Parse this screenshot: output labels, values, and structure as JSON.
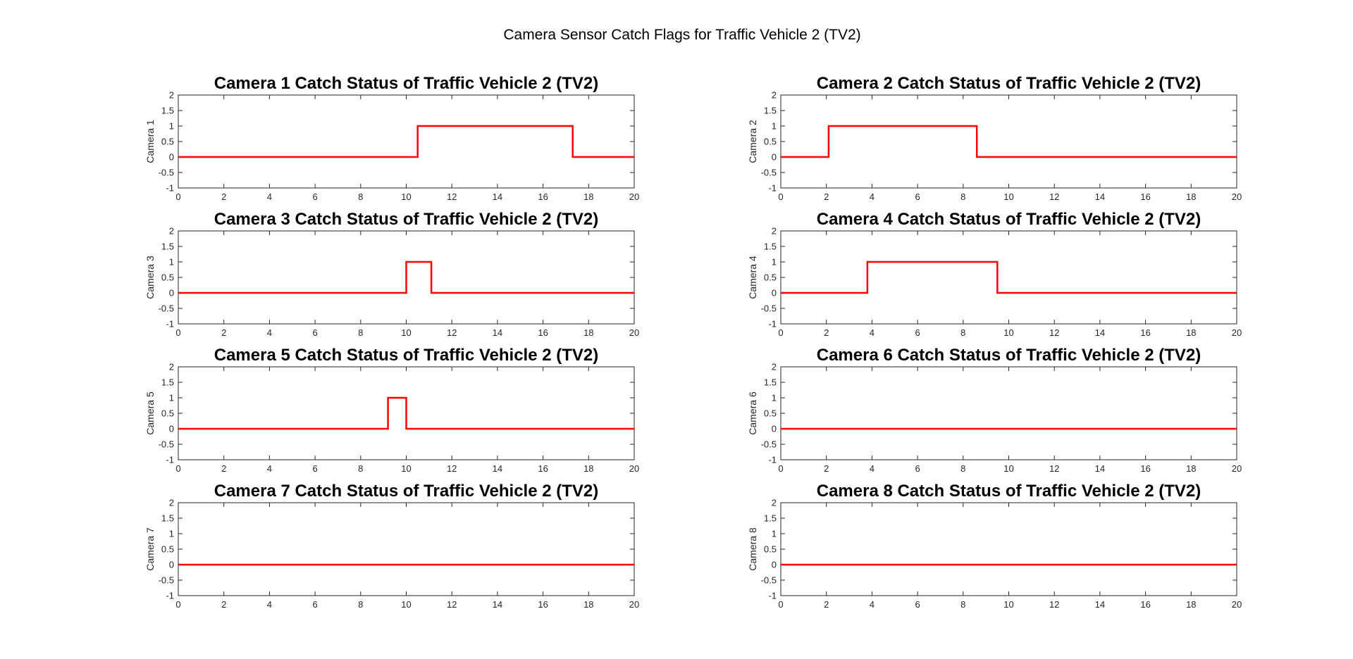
{
  "figure": {
    "title": "Camera Sensor Catch Flags for Traffic Vehicle 2 (TV2)",
    "line_color": "#ff0000"
  },
  "chart_data": [
    {
      "type": "line",
      "title": "Camera 1 Catch Status of Traffic Vehicle 2 (TV2)",
      "ylabel": "Camera 1",
      "xlim": [
        0,
        20
      ],
      "ylim": [
        -1,
        2
      ],
      "xticks": [
        0,
        2,
        4,
        6,
        8,
        10,
        12,
        14,
        16,
        18,
        20
      ],
      "yticks": [
        -1,
        -0.5,
        0,
        0.5,
        1,
        1.5,
        2
      ],
      "grid": true,
      "series": [
        {
          "x": [
            0,
            10.5,
            10.5,
            17.3,
            17.3,
            20
          ],
          "y": [
            0,
            0,
            1,
            1,
            0,
            0
          ]
        }
      ]
    },
    {
      "type": "line",
      "title": "Camera 2 Catch Status of Traffic Vehicle 2 (TV2)",
      "ylabel": "Camera 2",
      "xlim": [
        0,
        20
      ],
      "ylim": [
        -1,
        2
      ],
      "xticks": [
        0,
        2,
        4,
        6,
        8,
        10,
        12,
        14,
        16,
        18,
        20
      ],
      "yticks": [
        -1,
        -0.5,
        0,
        0.5,
        1,
        1.5,
        2
      ],
      "grid": true,
      "series": [
        {
          "x": [
            0,
            2.1,
            2.1,
            8.6,
            8.6,
            20
          ],
          "y": [
            0,
            0,
            1,
            1,
            0,
            0
          ]
        }
      ]
    },
    {
      "type": "line",
      "title": "Camera 3 Catch Status of Traffic Vehicle 2 (TV2)",
      "ylabel": "Camera 3",
      "xlim": [
        0,
        20
      ],
      "ylim": [
        -1,
        2
      ],
      "xticks": [
        0,
        2,
        4,
        6,
        8,
        10,
        12,
        14,
        16,
        18,
        20
      ],
      "yticks": [
        -1,
        -0.5,
        0,
        0.5,
        1,
        1.5,
        2
      ],
      "grid": true,
      "series": [
        {
          "x": [
            0,
            10.0,
            10.0,
            11.1,
            11.1,
            20
          ],
          "y": [
            0,
            0,
            1,
            1,
            0,
            0
          ]
        }
      ]
    },
    {
      "type": "line",
      "title": "Camera 4 Catch Status of Traffic Vehicle 2 (TV2)",
      "ylabel": "Camera 4",
      "xlim": [
        0,
        20
      ],
      "ylim": [
        -1,
        2
      ],
      "xticks": [
        0,
        2,
        4,
        6,
        8,
        10,
        12,
        14,
        16,
        18,
        20
      ],
      "yticks": [
        -1,
        -0.5,
        0,
        0.5,
        1,
        1.5,
        2
      ],
      "grid": true,
      "series": [
        {
          "x": [
            0,
            3.8,
            3.8,
            9.5,
            9.5,
            20
          ],
          "y": [
            0,
            0,
            1,
            1,
            0,
            0
          ]
        }
      ]
    },
    {
      "type": "line",
      "title": "Camera 5 Catch Status of Traffic Vehicle 2 (TV2)",
      "ylabel": "Camera 5",
      "xlim": [
        0,
        20
      ],
      "ylim": [
        -1,
        2
      ],
      "xticks": [
        0,
        2,
        4,
        6,
        8,
        10,
        12,
        14,
        16,
        18,
        20
      ],
      "yticks": [
        -1,
        -0.5,
        0,
        0.5,
        1,
        1.5,
        2
      ],
      "grid": true,
      "series": [
        {
          "x": [
            0,
            9.2,
            9.2,
            10.0,
            10.0,
            20
          ],
          "y": [
            0,
            0,
            1,
            1,
            0,
            0
          ]
        }
      ]
    },
    {
      "type": "line",
      "title": "Camera 6 Catch Status of Traffic Vehicle 2 (TV2)",
      "ylabel": "Camera 6",
      "xlim": [
        0,
        20
      ],
      "ylim": [
        -1,
        2
      ],
      "xticks": [
        0,
        2,
        4,
        6,
        8,
        10,
        12,
        14,
        16,
        18,
        20
      ],
      "yticks": [
        -1,
        -0.5,
        0,
        0.5,
        1,
        1.5,
        2
      ],
      "grid": true,
      "series": [
        {
          "x": [
            0,
            20
          ],
          "y": [
            0,
            0
          ]
        }
      ]
    },
    {
      "type": "line",
      "title": "Camera 7 Catch Status of Traffic Vehicle 2 (TV2)",
      "ylabel": "Camera 7",
      "xlim": [
        0,
        20
      ],
      "ylim": [
        -1,
        2
      ],
      "xticks": [
        0,
        2,
        4,
        6,
        8,
        10,
        12,
        14,
        16,
        18,
        20
      ],
      "yticks": [
        -1,
        -0.5,
        0,
        0.5,
        1,
        1.5,
        2
      ],
      "grid": true,
      "series": [
        {
          "x": [
            0,
            20
          ],
          "y": [
            0,
            0
          ]
        }
      ]
    },
    {
      "type": "line",
      "title": "Camera 8 Catch Status of Traffic Vehicle 2 (TV2)",
      "ylabel": "Camera 8",
      "xlim": [
        0,
        20
      ],
      "ylim": [
        -1,
        2
      ],
      "xticks": [
        0,
        2,
        4,
        6,
        8,
        10,
        12,
        14,
        16,
        18,
        20
      ],
      "yticks": [
        -1,
        -0.5,
        0,
        0.5,
        1,
        1.5,
        2
      ],
      "grid": true,
      "series": [
        {
          "x": [
            0,
            20
          ],
          "y": [
            0,
            0
          ]
        }
      ]
    }
  ]
}
